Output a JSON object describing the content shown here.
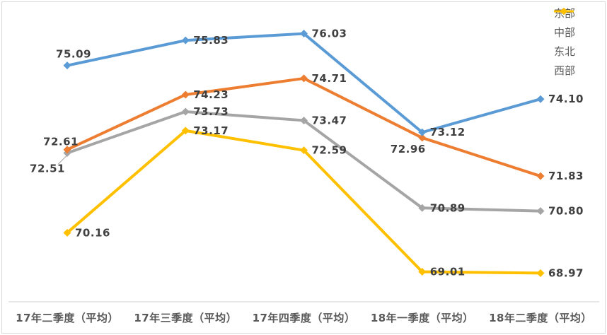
{
  "chart_data": {
    "type": "line",
    "title": "",
    "categories": [
      "17年二季度（平均）",
      "17年三季度（平均）",
      "17年四季度（平均）",
      "18年一季度（平均）",
      "18年二季度（平均）"
    ],
    "series": [
      {
        "name": "东部",
        "color": "#5B9BD5",
        "values": [
          75.09,
          75.83,
          76.03,
          73.12,
          74.1
        ],
        "label_pos": [
          "above",
          "right",
          "right",
          "right",
          "right"
        ]
      },
      {
        "name": "中部",
        "color": "#ED7D31",
        "values": [
          72.61,
          74.23,
          74.71,
          72.96,
          71.83
        ],
        "label_pos": [
          "above-left",
          "right",
          "right",
          "below",
          "right"
        ]
      },
      {
        "name": "东北",
        "color": "#A5A5A5",
        "values": [
          72.51,
          73.73,
          73.47,
          70.89,
          70.8
        ],
        "label_pos": [
          "below-leader",
          "right",
          "right",
          "right",
          "right"
        ]
      },
      {
        "name": "西部",
        "color": "#FFC000",
        "values": [
          70.16,
          73.17,
          72.59,
          69.01,
          68.97
        ],
        "label_pos": [
          "right",
          "right",
          "right",
          "right",
          "right"
        ]
      }
    ],
    "legend": {
      "position": "top-right",
      "entries": [
        "东部",
        "中部",
        "东北",
        "西部"
      ]
    },
    "marker": "diamond",
    "value_format": "0.00",
    "grid": false,
    "y_axis_visible": false,
    "ylim": [
      68.5,
      76.6
    ],
    "colors": {
      "axis_line": "#d9d9d9",
      "data_label": "#404040",
      "axis_label": "#595959",
      "background": "#ffffff",
      "border": "#d9d9d9"
    }
  }
}
